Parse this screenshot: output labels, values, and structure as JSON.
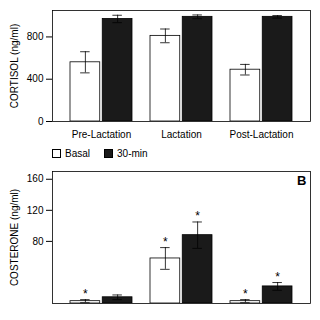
{
  "chart_data": [
    {
      "type": "bar",
      "ylabel": "CORTISOL (ng/ml)",
      "categories": [
        "Pre-Lactation",
        "Lactation",
        "Post-Lactation"
      ],
      "series": [
        {
          "color": "#ffffff",
          "values": [
            560,
            810,
            490
          ],
          "errors": [
            100,
            65,
            50
          ]
        },
        {
          "color": "#1a1a1a",
          "values": [
            970,
            990,
            990
          ],
          "errors": [
            35,
            18,
            12
          ]
        }
      ],
      "ylim": [
        0,
        1050
      ],
      "yticks": [
        0,
        400,
        800
      ]
    },
    {
      "type": "bar",
      "ylabel": "COSTERONE (ng/ml)",
      "categories": [
        "Pre-Lactation",
        "Lactation",
        "Post-Lactation"
      ],
      "series": [
        {
          "name": "Basal",
          "color": "#ffffff",
          "values": [
            3,
            58,
            3
          ],
          "errors": [
            2,
            14,
            2
          ]
        },
        {
          "name": "30-min",
          "color": "#1a1a1a",
          "values": [
            8,
            88,
            22
          ],
          "errors": [
            3,
            17,
            5
          ]
        }
      ],
      "ylim": [
        0,
        170
      ],
      "yticks": [
        80,
        120,
        160
      ],
      "tick_labels": "y",
      "legend": "upper left",
      "annotations": [
        {
          "text": "*",
          "series": "Basal",
          "category": "Pre-Lactation"
        },
        {
          "text": "*",
          "series": "Basal",
          "category": "Lactation"
        },
        {
          "text": "*",
          "series": "Basal",
          "category": "Post-Lactation"
        },
        {
          "text": "*",
          "series": "30-min",
          "category": "Lactation"
        },
        {
          "text": "*",
          "series": "30-min",
          "category": "Post-Lactation"
        },
        {
          "text": "B"
        }
      ]
    }
  ]
}
